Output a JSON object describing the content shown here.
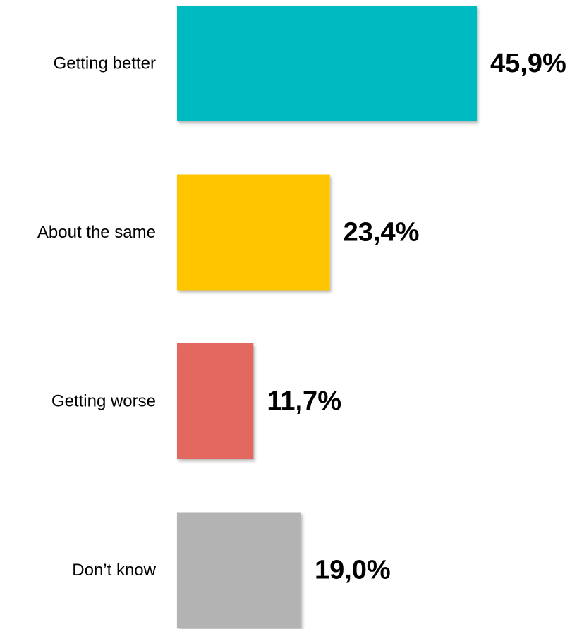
{
  "chart_data": {
    "type": "bar",
    "orientation": "horizontal",
    "categories": [
      "Getting better",
      "About the same",
      "Getting worse",
      "Don’t know"
    ],
    "values": [
      45.9,
      23.4,
      11.7,
      19.0
    ],
    "value_labels": [
      "45,9%",
      "23,4%",
      "11,7%",
      "19,0%"
    ],
    "colors": [
      "#00BAC2",
      "#FFC600",
      "#E26761",
      "#B3B3B3"
    ],
    "title": "",
    "xlabel": "",
    "ylabel": "",
    "xlim": [
      0,
      100
    ],
    "grid": false,
    "legend": "none"
  }
}
